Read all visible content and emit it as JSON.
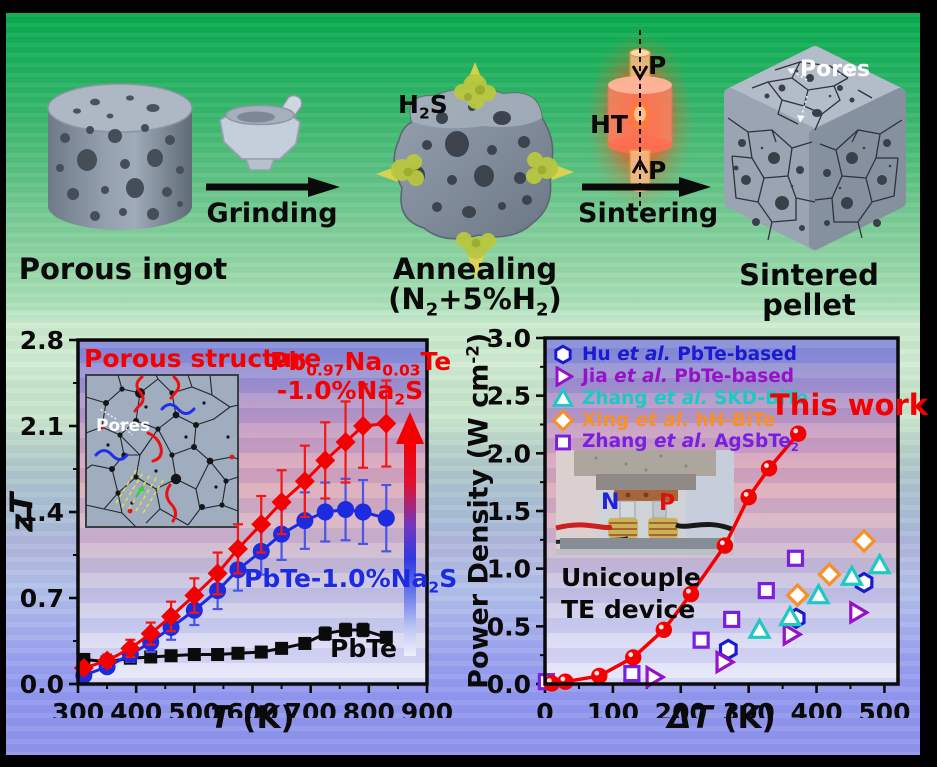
{
  "top_section": {
    "porous_ingot_label": "Porous ingot",
    "grinding_label": "Grinding",
    "h2s_label": "H~2~S",
    "annealing_label": "Annealing (N~2~+5%H~2~)",
    "sintering_label": "Sintering",
    "sintered_pellet_label": "Sintered  pellet",
    "pellet_pores_label": "Pores",
    "hot_press": {
      "ht_label": "HT",
      "pressure_top_label": "P",
      "pressure_bottom_label": "P"
    }
  },
  "chart_data": [
    {
      "id": "zT-vs-T",
      "type": "line",
      "xlabel": "*T* (K)",
      "ylabel": "*zT*",
      "xlim": [
        300,
        900
      ],
      "ylim": [
        0,
        2.8
      ],
      "xticks": [
        300,
        400,
        500,
        600,
        700,
        800,
        900
      ],
      "yticks": [
        "0.0",
        "0.7",
        "1.4",
        "2.1",
        "2.8"
      ],
      "grid": false,
      "x": [
        310,
        350,
        390,
        425,
        460,
        500,
        540,
        575,
        615,
        650,
        690,
        725,
        760,
        790,
        830
      ],
      "series": [
        {
          "name": "PbTe",
          "label": "PbTe",
          "marker": "square",
          "color": "#0b0b0b",
          "err_color": "#1a1a1a",
          "values": [
            0.2,
            0.18,
            0.21,
            0.22,
            0.23,
            0.24,
            0.24,
            0.25,
            0.26,
            0.29,
            0.33,
            0.41,
            0.44,
            0.44,
            0.38
          ],
          "errors": [
            0.02,
            0.02,
            0.02,
            0.02,
            0.02,
            0.02,
            0.02,
            0.02,
            0.02,
            0.03,
            0.04,
            0.05,
            0.05,
            0.05,
            0.04
          ]
        },
        {
          "name": "PbTe-1.0%Na2S",
          "label": "PbTe-1.0%Na~2~S",
          "marker": "circle",
          "color": "#1c2ae0",
          "err_color": "#4a55e8",
          "values": [
            0.07,
            0.14,
            0.24,
            0.34,
            0.46,
            0.6,
            0.76,
            0.93,
            1.08,
            1.22,
            1.33,
            1.4,
            1.42,
            1.4,
            1.35
          ],
          "errors": [
            0.03,
            0.04,
            0.06,
            0.08,
            0.1,
            0.12,
            0.15,
            0.17,
            0.19,
            0.21,
            0.23,
            0.24,
            0.25,
            0.26,
            0.27
          ]
        },
        {
          "name": "Pb0.97Na0.03Te-1.0%Na2S",
          "label_line1": "Pb~0.97~Na~0.03~Te",
          "label_line2": "-1.0%Na~2~S",
          "marker": "diamond",
          "color": "#f40000",
          "err_color": "#f41616",
          "values": [
            0.13,
            0.19,
            0.29,
            0.41,
            0.55,
            0.72,
            0.9,
            1.1,
            1.3,
            1.48,
            1.65,
            1.82,
            1.97,
            2.1,
            2.12
          ],
          "errors": [
            0.03,
            0.05,
            0.07,
            0.09,
            0.12,
            0.14,
            0.17,
            0.2,
            0.23,
            0.26,
            0.29,
            0.31,
            0.33,
            0.34,
            0.35
          ]
        }
      ],
      "annotations": {
        "inset_title": "Porous structure",
        "inset_pores_label": "Pores"
      }
    },
    {
      "id": "power-density-vs-dT",
      "type": "scatter",
      "xlabel": "*ΔT* (K)",
      "ylabel": "Power Density (W cm^-2^)",
      "xlim": [
        0,
        520
      ],
      "ylim": [
        0,
        3
      ],
      "xticks": [
        0,
        100,
        200,
        300,
        400,
        500
      ],
      "yticks": [
        "0.0",
        "0.5",
        "1.0",
        "1.5",
        "2.0",
        "2.5",
        "3.0"
      ],
      "grid": false,
      "legend_position": "top-left",
      "series": [
        {
          "name": "Hu et al. PbTe-based",
          "label": "Hu *et al.* PbTe-based",
          "marker": "hexagon",
          "color": "#1a1ad2",
          "points": [
            [
              270,
              0.3
            ],
            [
              370,
              0.57
            ],
            [
              470,
              0.88
            ]
          ]
        },
        {
          "name": "Jia et al. PbTe-based",
          "label": "Jia *et al.* PbTe-based",
          "marker": "triangle-right",
          "color": "#9612c8",
          "points": [
            [
              160,
              0.06
            ],
            [
              263,
              0.19
            ],
            [
              362,
              0.43
            ],
            [
              460,
              0.62
            ]
          ]
        },
        {
          "name": "Zhang et al. SKD-BiTe",
          "label": "Zhang *et al.* SKD-BiTe",
          "marker": "triangle-up",
          "color": "#1fc8c3",
          "points": [
            [
              316,
              0.47
            ],
            [
              361,
              0.58
            ],
            [
              403,
              0.77
            ],
            [
              452,
              0.93
            ],
            [
              493,
              1.03
            ]
          ]
        },
        {
          "name": "Xing et al. hH-BiTe",
          "label": "Xing *et al.* hH-BiTe",
          "marker": "diamond-open",
          "color": "#f59127",
          "points": [
            [
              372,
              0.77
            ],
            [
              419,
              0.95
            ],
            [
              470,
              1.24
            ]
          ]
        },
        {
          "name": "Zhang et al. AgSbTe2",
          "label": "Zhang *et al.* AgSbTe~2~",
          "marker": "square-open",
          "color": "#7a1fe0",
          "points": [
            [
              2,
              0.02
            ],
            [
              128,
              0.09
            ],
            [
              230,
              0.38
            ],
            [
              275,
              0.56
            ],
            [
              326,
              0.81
            ],
            [
              369,
              1.09
            ]
          ]
        },
        {
          "name": "This work",
          "label": "This work",
          "marker": "circle-dot",
          "color": "#f40000",
          "line": true,
          "points": [
            [
              10,
              0.005
            ],
            [
              30,
              0.02
            ],
            [
              80,
              0.07
            ],
            [
              130,
              0.23
            ],
            [
              175,
              0.47
            ],
            [
              215,
              0.78
            ],
            [
              265,
              1.2
            ],
            [
              300,
              1.62
            ],
            [
              330,
              1.87
            ],
            [
              373,
              2.17
            ]
          ]
        }
      ],
      "annotations": {
        "this_work_label": "This work",
        "inset_n_label": "N",
        "inset_p_label": "P",
        "inset_caption_line1": "Unicouple",
        "inset_caption_line2": "TE device"
      }
    }
  ]
}
